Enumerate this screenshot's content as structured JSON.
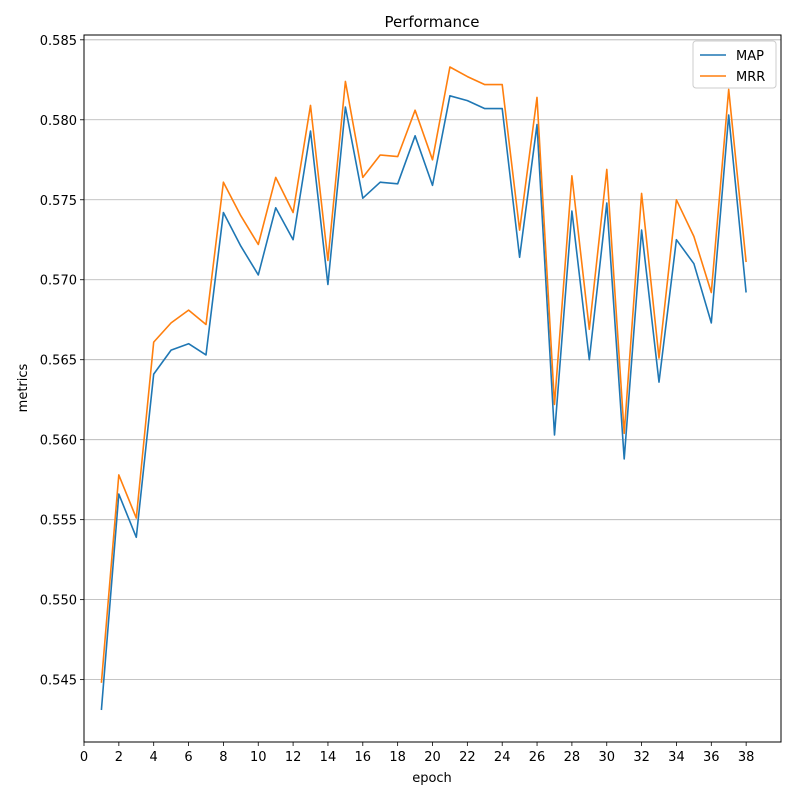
{
  "chart_data": {
    "type": "line",
    "title": "Performance",
    "xlabel": "epoch",
    "ylabel": "metrics",
    "xlim": [
      0,
      40
    ],
    "ylim": [
      0.5411,
      0.5853
    ],
    "xticks": [
      0,
      2,
      4,
      6,
      8,
      10,
      12,
      14,
      16,
      18,
      20,
      22,
      24,
      26,
      28,
      30,
      32,
      34,
      36,
      38
    ],
    "yticks": [
      0.545,
      0.55,
      0.555,
      0.56,
      0.565,
      0.57,
      0.575,
      0.58,
      0.585
    ],
    "ytick_labels": [
      "0.545",
      "0.550",
      "0.555",
      "0.560",
      "0.565",
      "0.570",
      "0.575",
      "0.580",
      "0.585"
    ],
    "grid": "horizontal",
    "legend_position": "top-right",
    "x": [
      1,
      2,
      3,
      4,
      5,
      6,
      7,
      8,
      9,
      10,
      11,
      12,
      13,
      14,
      15,
      16,
      17,
      18,
      19,
      20,
      21,
      22,
      23,
      24,
      25,
      26,
      27,
      28,
      29,
      30,
      31,
      32,
      33,
      34,
      35,
      36,
      37,
      38
    ],
    "series": [
      {
        "name": "MAP",
        "color": "#1f77b4",
        "values": [
          0.5431,
          0.5566,
          0.5539,
          0.5641,
          0.5656,
          0.566,
          0.5653,
          0.5742,
          0.5721,
          0.5703,
          0.5745,
          0.5725,
          0.5793,
          0.5697,
          0.5808,
          0.5751,
          0.5761,
          0.576,
          0.579,
          0.5759,
          0.5815,
          0.5812,
          0.5807,
          0.5807,
          0.5714,
          0.5797,
          0.5603,
          0.5743,
          0.565,
          0.5748,
          0.5588,
          0.5731,
          0.5636,
          0.5725,
          0.571,
          0.5673,
          0.5803,
          0.5692
        ]
      },
      {
        "name": "MRR",
        "color": "#ff7f0e",
        "values": [
          0.5448,
          0.5578,
          0.5551,
          0.5661,
          0.5673,
          0.5681,
          0.5672,
          0.5761,
          0.574,
          0.5722,
          0.5764,
          0.5742,
          0.5809,
          0.5712,
          0.5824,
          0.5764,
          0.5778,
          0.5777,
          0.5806,
          0.5775,
          0.5833,
          0.5827,
          0.5822,
          0.5822,
          0.5731,
          0.5814,
          0.5622,
          0.5765,
          0.5669,
          0.5769,
          0.5604,
          0.5754,
          0.5651,
          0.575,
          0.5727,
          0.5692,
          0.5819,
          0.5711
        ]
      }
    ]
  }
}
